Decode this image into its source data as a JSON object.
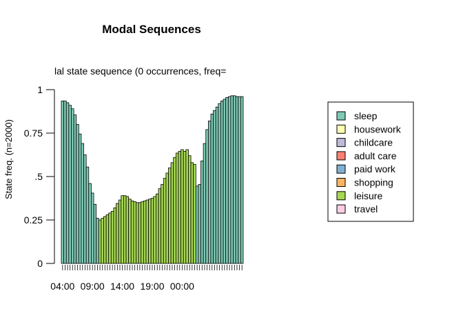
{
  "chart_data": {
    "type": "bar",
    "title": "Modal Sequences",
    "subtitle": "lal state sequence (0 occurrences, freq=",
    "ylabel": "State freq. (n=2000)",
    "xlabel": "",
    "ylim": [
      0,
      1
    ],
    "y_ticks": [
      "0",
      "0.25",
      ".5",
      "0.75",
      "1"
    ],
    "y_tick_values": [
      0,
      0.25,
      0.5,
      0.75,
      1
    ],
    "x_tick_labels": [
      "04:00",
      "09:00",
      "14:00",
      "19:00",
      "00:00"
    ],
    "x_tick_positions": [
      0,
      12,
      24,
      36,
      48
    ],
    "grid": false,
    "legend_position": "right",
    "legend": [
      {
        "label": "sleep",
        "color": "#7fc9b4"
      },
      {
        "label": "housework",
        "color": "#ffffb3"
      },
      {
        "label": "childcare",
        "color": "#bebada"
      },
      {
        "label": "adult care",
        "color": "#fb8072"
      },
      {
        "label": "paid work",
        "color": "#80b1d3"
      },
      {
        "label": "shopping",
        "color": "#fdb462"
      },
      {
        "label": "leisure",
        "color": "#a6d854"
      },
      {
        "label": "travel",
        "color": "#fccde5"
      }
    ],
    "values": [
      0.935,
      0.935,
      0.925,
      0.91,
      0.89,
      0.855,
      0.8,
      0.745,
      0.69,
      0.625,
      0.555,
      0.46,
      0.405,
      0.34,
      0.26,
      0.25,
      0.26,
      0.27,
      0.28,
      0.29,
      0.3,
      0.32,
      0.345,
      0.365,
      0.39,
      0.39,
      0.385,
      0.37,
      0.36,
      0.355,
      0.35,
      0.35,
      0.355,
      0.36,
      0.365,
      0.37,
      0.375,
      0.385,
      0.4,
      0.43,
      0.455,
      0.49,
      0.52,
      0.55,
      0.58,
      0.61,
      0.635,
      0.645,
      0.655,
      0.645,
      0.655,
      0.62,
      0.58,
      0.57,
      0.445,
      0.455,
      0.59,
      0.69,
      0.77,
      0.82,
      0.86,
      0.88,
      0.9,
      0.92,
      0.935,
      0.945,
      0.955,
      0.96,
      0.965,
      0.965,
      0.96,
      0.96,
      0.96
    ],
    "states": [
      "sleep",
      "sleep",
      "sleep",
      "sleep",
      "sleep",
      "sleep",
      "sleep",
      "sleep",
      "sleep",
      "sleep",
      "sleep",
      "sleep",
      "sleep",
      "sleep",
      "sleep",
      "leisure",
      "leisure",
      "leisure",
      "leisure",
      "leisure",
      "leisure",
      "leisure",
      "leisure",
      "leisure",
      "leisure",
      "leisure",
      "leisure",
      "leisure",
      "leisure",
      "leisure",
      "leisure",
      "leisure",
      "leisure",
      "leisure",
      "leisure",
      "leisure",
      "leisure",
      "leisure",
      "leisure",
      "leisure",
      "leisure",
      "leisure",
      "leisure",
      "leisure",
      "leisure",
      "leisure",
      "leisure",
      "leisure",
      "leisure",
      "leisure",
      "leisure",
      "leisure",
      "leisure",
      "leisure",
      "sleep",
      "sleep",
      "sleep",
      "sleep",
      "sleep",
      "sleep",
      "sleep",
      "sleep",
      "sleep",
      "sleep",
      "sleep",
      "sleep",
      "sleep",
      "sleep",
      "sleep",
      "sleep",
      "sleep",
      "sleep",
      "sleep"
    ]
  }
}
